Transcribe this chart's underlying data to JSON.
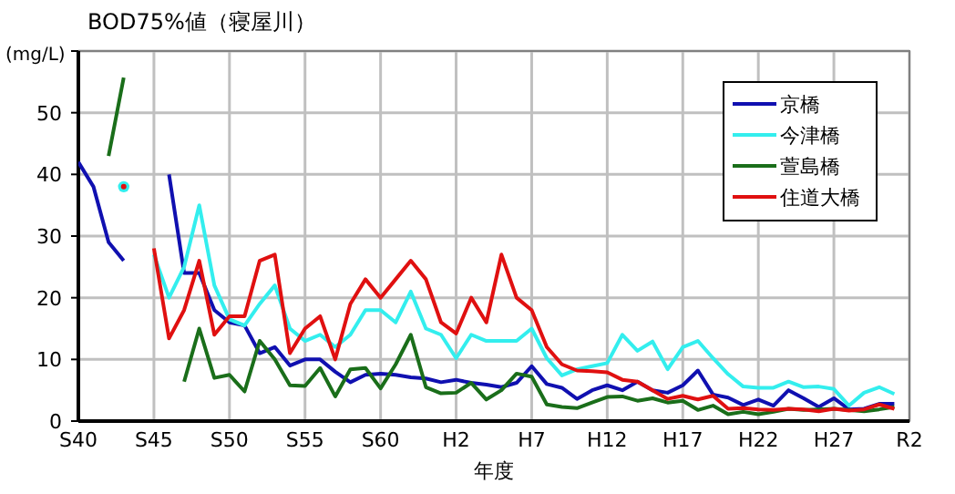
{
  "chart_data": {
    "type": "line",
    "title": "BOD75%値（寝屋川）",
    "ylabel": "(mg/L)",
    "xlabel": "年度",
    "categories": [
      "S40",
      null,
      null,
      null,
      null,
      "S45",
      null,
      null,
      null,
      null,
      "S50",
      null,
      null,
      null,
      null,
      "S55",
      null,
      null,
      null,
      null,
      "S60",
      null,
      null,
      null,
      null,
      "H2",
      null,
      null,
      null,
      null,
      "H7",
      null,
      null,
      null,
      null,
      "H12",
      null,
      null,
      null,
      null,
      "H17",
      null,
      null,
      null,
      null,
      "H22",
      null,
      null,
      null,
      null,
      "H27",
      null,
      null,
      null,
      null,
      "R2"
    ],
    "ylim": [
      0,
      60
    ],
    "yticks": [
      0,
      10,
      20,
      30,
      40,
      50,
      {
        "value": 60,
        "label": null
      }
    ],
    "grid": true,
    "legend": "top right",
    "marker": "none",
    "line_style": "solid",
    "series": [
      {
        "name": "京橋",
        "color": "#1010b0",
        "values": [
          42,
          38,
          29,
          26,
          null,
          null,
          40,
          24,
          24,
          18,
          16,
          15.5,
          11,
          12,
          9,
          10,
          10,
          8,
          6.3,
          7.5,
          7.7,
          7.5,
          7.1,
          6.9,
          6.3,
          6.7,
          6.2,
          5.9,
          5.5,
          6.2,
          8.9,
          6,
          5.4,
          3.6,
          5,
          5.8,
          5,
          6.4,
          5,
          4.6,
          5.8,
          8.2,
          4.3,
          3.8,
          2.6,
          3.5,
          2.5,
          5,
          3.7,
          2.3,
          3.7,
          1.9,
          2,
          2.8,
          2.8,
          null
        ]
      },
      {
        "name": "今津橋",
        "color": "#33eeee",
        "values": [
          null,
          null,
          null,
          38,
          null,
          27,
          20,
          25,
          35,
          22,
          16.5,
          15.5,
          19,
          22,
          15,
          13,
          14,
          12,
          14,
          18,
          18,
          16,
          21,
          15,
          14,
          10.2,
          14,
          13,
          13,
          13,
          15,
          10.2,
          7.4,
          8.4,
          8.9,
          9.4,
          14,
          11.4,
          12.9,
          8.4,
          12,
          13,
          10.2,
          7.6,
          5.6,
          5.4,
          5.4,
          6.4,
          5.5,
          5.6,
          5.2,
          2.5,
          4.6,
          5.5,
          4.4,
          null
        ]
      },
      {
        "name": "萱島橋",
        "color": "#1a6e1a",
        "values": [
          null,
          null,
          43,
          55.7,
          null,
          null,
          null,
          6.4,
          15,
          7,
          7.5,
          4.8,
          13,
          10,
          5.8,
          5.7,
          8.6,
          4,
          8.4,
          8.6,
          5.3,
          9.2,
          14,
          5.5,
          4.5,
          4.6,
          6.2,
          3.5,
          5,
          7.7,
          7.2,
          2.7,
          2.3,
          2.1,
          3,
          3.9,
          4,
          3.3,
          3.7,
          3,
          3.3,
          1.8,
          2.5,
          1.1,
          1.5,
          1.1,
          1.5,
          2,
          1.8,
          1.9,
          2,
          1.8,
          1.6,
          1.9,
          2.3,
          null
        ]
      },
      {
        "name": "住道大橋",
        "color": "#e01010",
        "values": [
          null,
          null,
          null,
          38,
          null,
          28,
          13.4,
          18,
          26,
          14,
          17,
          17,
          26,
          27,
          11,
          15,
          17,
          10,
          19,
          23,
          20,
          23,
          26,
          23,
          16,
          14.2,
          20,
          16,
          27,
          20,
          18,
          12,
          9.2,
          8.2,
          8.1,
          7.9,
          6.7,
          6.4,
          5,
          3.6,
          4.1,
          3.5,
          4.1,
          2,
          2.1,
          1.9,
          1.8,
          2,
          1.9,
          1.6,
          2,
          1.7,
          1.9,
          2.7,
          2,
          null
        ]
      }
    ]
  }
}
